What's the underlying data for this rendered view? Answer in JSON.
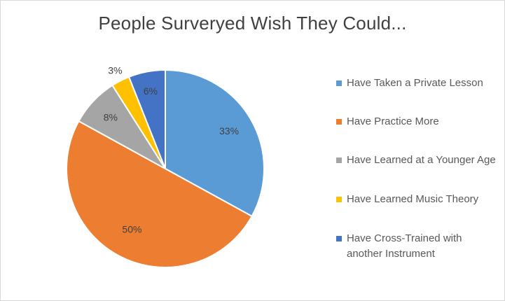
{
  "chart_data": {
    "type": "pie",
    "title": "People Surveryed Wish They Could...",
    "categories": [
      "Have Taken a Private Lesson",
      "Have Practice More",
      "Have Learned at a Younger Age",
      "Have Learned Music Theory",
      "Have Cross-Trained with another Instrument"
    ],
    "values": [
      33,
      50,
      8,
      3,
      6
    ],
    "data_labels": [
      "33%",
      "50%",
      "8%",
      "3%",
      "6%"
    ],
    "colors": [
      "#5B9BD5",
      "#ED7D31",
      "#A5A5A5",
      "#FFC000",
      "#4472C4"
    ],
    "legend_position": "right",
    "start": "top, clockwise"
  }
}
